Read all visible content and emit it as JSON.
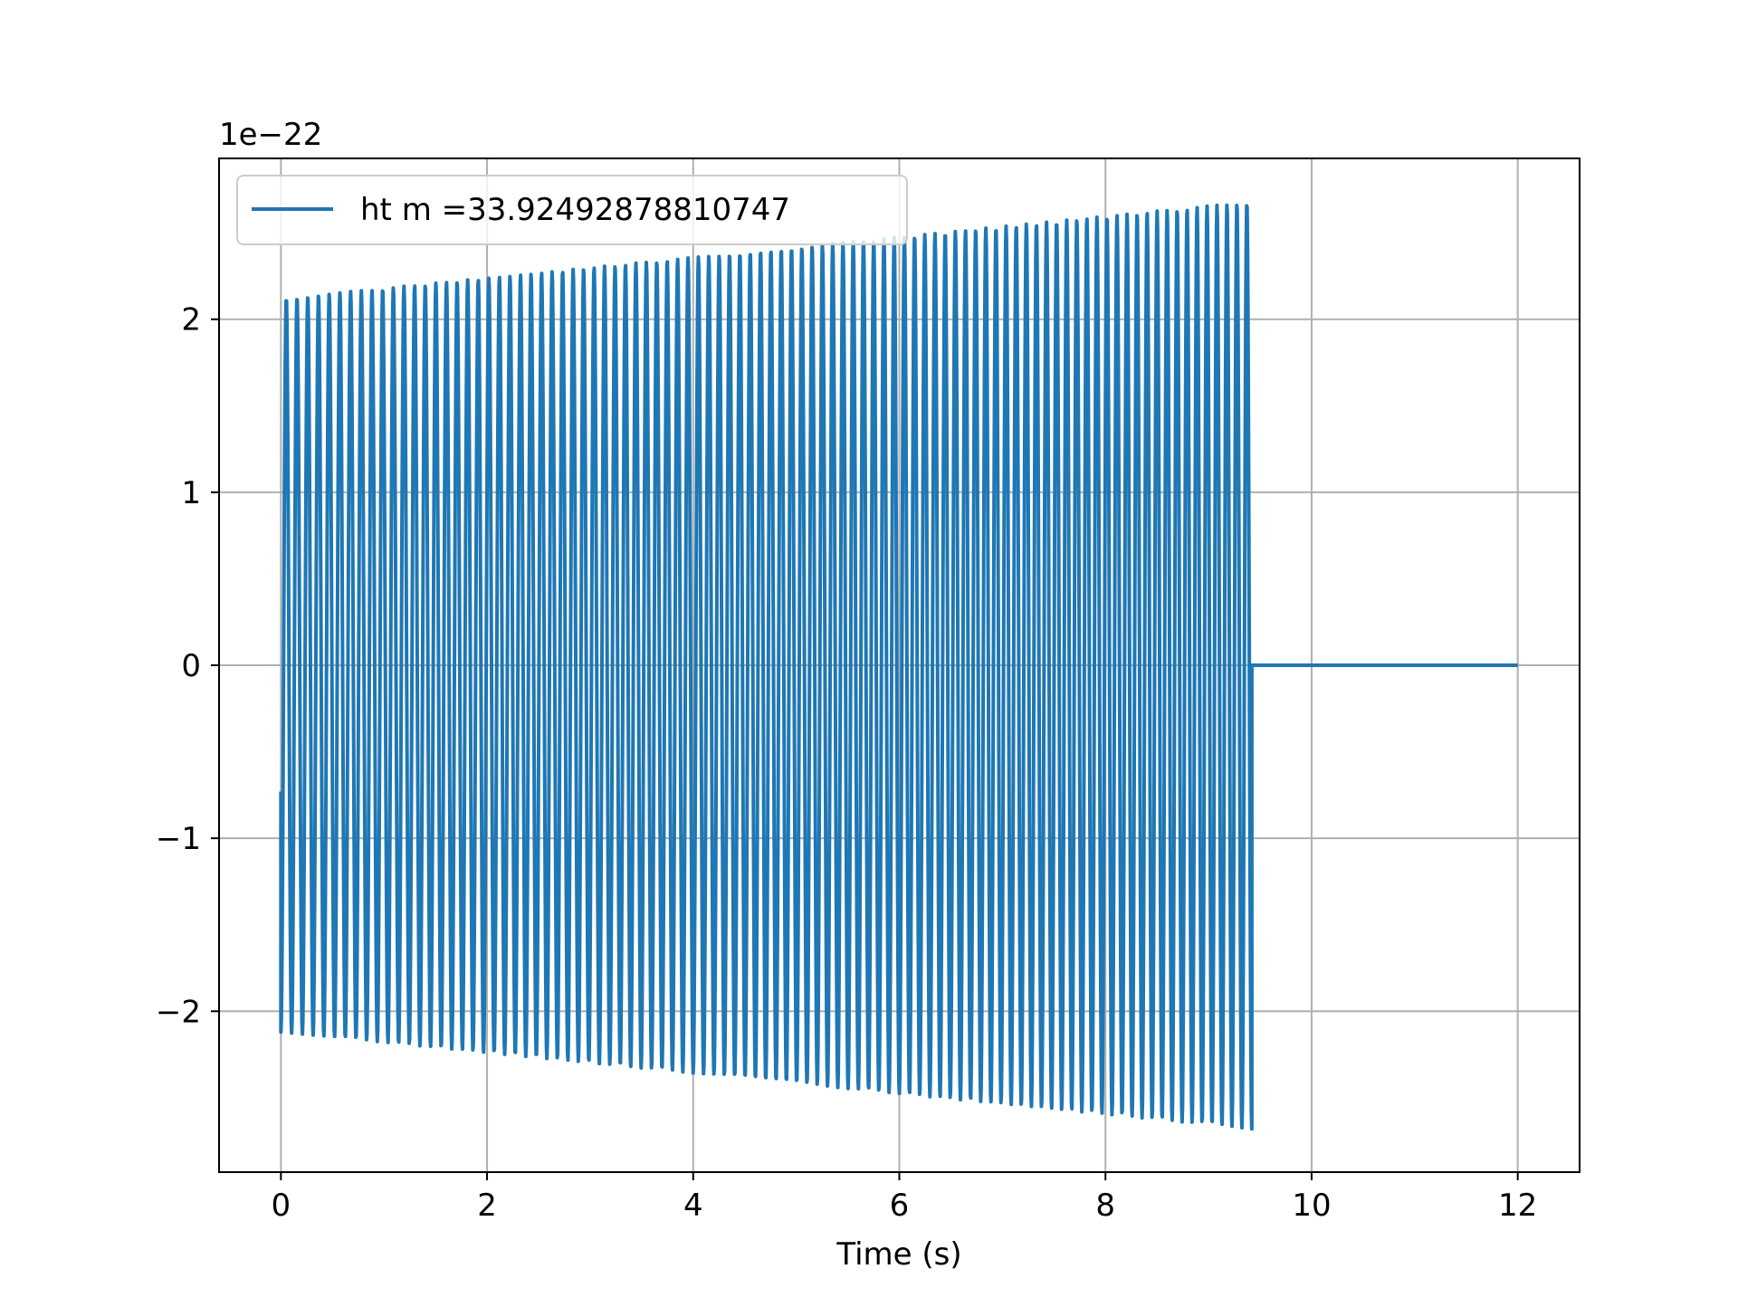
{
  "chart_data": {
    "type": "line",
    "xlabel": "Time (s)",
    "ylabel": "",
    "offset_label": "1e−22",
    "xlim": [
      -0.6,
      12.6
    ],
    "ylim": [
      -2.93,
      2.93
    ],
    "xticks": [
      0,
      2,
      4,
      6,
      8,
      10,
      12
    ],
    "xtick_labels": [
      "0",
      "2",
      "4",
      "6",
      "8",
      "10",
      "12"
    ],
    "yticks": [
      -2,
      -1,
      0,
      1,
      2
    ],
    "ytick_labels": [
      "−2",
      "−1",
      "0",
      "1",
      "2"
    ],
    "grid": true,
    "legend_position": "upper-left",
    "series": [
      {
        "name": "ht m =33.92492878810747",
        "color": "#1f77b4",
        "signal": {
          "description_kind": "chirp-then-flat",
          "t_start": 0.0,
          "t_merge": 9.42,
          "t_end": 12.0,
          "cycles": 94,
          "amplitude_start": 2.12,
          "amplitude_end": 2.68,
          "initial_value": -0.73,
          "post_merge_value": 0.0
        }
      }
    ]
  }
}
